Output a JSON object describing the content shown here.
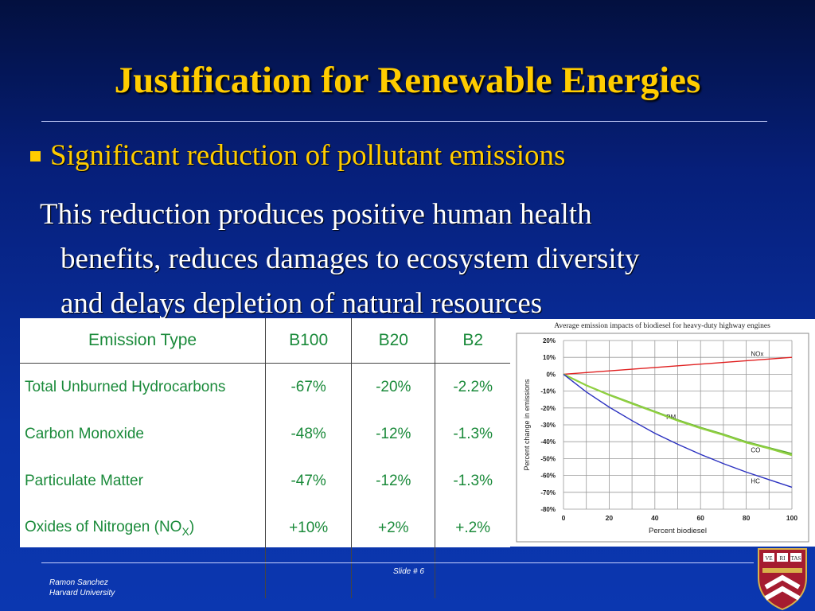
{
  "slide": {
    "title": "Justification for Renewable Energies",
    "bullet": "Significant reduction of pollutant emissions",
    "paragraph": {
      "line1": "This reduction produces positive human health",
      "line2": "benefits, reduces damages to ecosystem diversity",
      "line3": "and delays depletion of natural resources"
    },
    "footer": {
      "author": "Ramon Sanchez",
      "institution": "Harvard University",
      "slide_number": "Slide # 6"
    },
    "seal_text": [
      "VE",
      "RI",
      "TAS"
    ]
  },
  "table": {
    "headers": [
      "Emission Type",
      "B100",
      "B20",
      "B2"
    ],
    "rows": [
      {
        "name": "Total Unburned Hydrocarbons",
        "b100": "-67%",
        "b20": "-20%",
        "b2": "-2.2%"
      },
      {
        "name": "Carbon Monoxide",
        "b100": "-48%",
        "b20": "-12%",
        "b2": "-1.3%"
      },
      {
        "name": "Particulate Matter",
        "b100": "-47%",
        "b20": "-12%",
        "b2": "-1.3%"
      },
      {
        "name_main": "Oxides of Nitrogen (NO",
        "name_sub": "X",
        "name_end": ")",
        "b100": "+10%",
        "b20": "+2%",
        "b2": "+.2%"
      }
    ]
  },
  "chart_data": {
    "type": "line",
    "title": "Average emission impacts of biodiesel for heavy-duty highway engines",
    "xlabel": "Percent biodiesel",
    "ylabel": "Percent change in emissions",
    "xlim": [
      0,
      100
    ],
    "ylim": [
      -80,
      20
    ],
    "x_ticks": [
      "0",
      "20",
      "40",
      "60",
      "80",
      "100"
    ],
    "y_ticks": [
      "20%",
      "10%",
      "0%",
      "-10%",
      "-20%",
      "-30%",
      "-40%",
      "-50%",
      "-60%",
      "-70%",
      "-80%"
    ],
    "grid": true,
    "x": [
      0,
      10,
      20,
      30,
      40,
      50,
      60,
      70,
      80,
      90,
      100
    ],
    "series": [
      {
        "name": "NOx",
        "color": "#e02020",
        "values": [
          0,
          1,
          2,
          3,
          4,
          5,
          6,
          7,
          8,
          9,
          10
        ]
      },
      {
        "name": "PM",
        "color": "#5aaa2a",
        "values": [
          0,
          -6.5,
          -12,
          -17,
          -22,
          -27,
          -31.5,
          -35.5,
          -40,
          -43.5,
          -47
        ]
      },
      {
        "name": "CO",
        "color": "#90d040",
        "values": [
          0,
          -6.6,
          -12.3,
          -17.4,
          -22.4,
          -27.5,
          -32,
          -36,
          -40.5,
          -44,
          -48
        ]
      },
      {
        "name": "HC",
        "color": "#2a30c0",
        "values": [
          0,
          -10.5,
          -19.5,
          -27.5,
          -35,
          -41.5,
          -47.5,
          -53,
          -58,
          -62.5,
          -67
        ]
      }
    ]
  }
}
